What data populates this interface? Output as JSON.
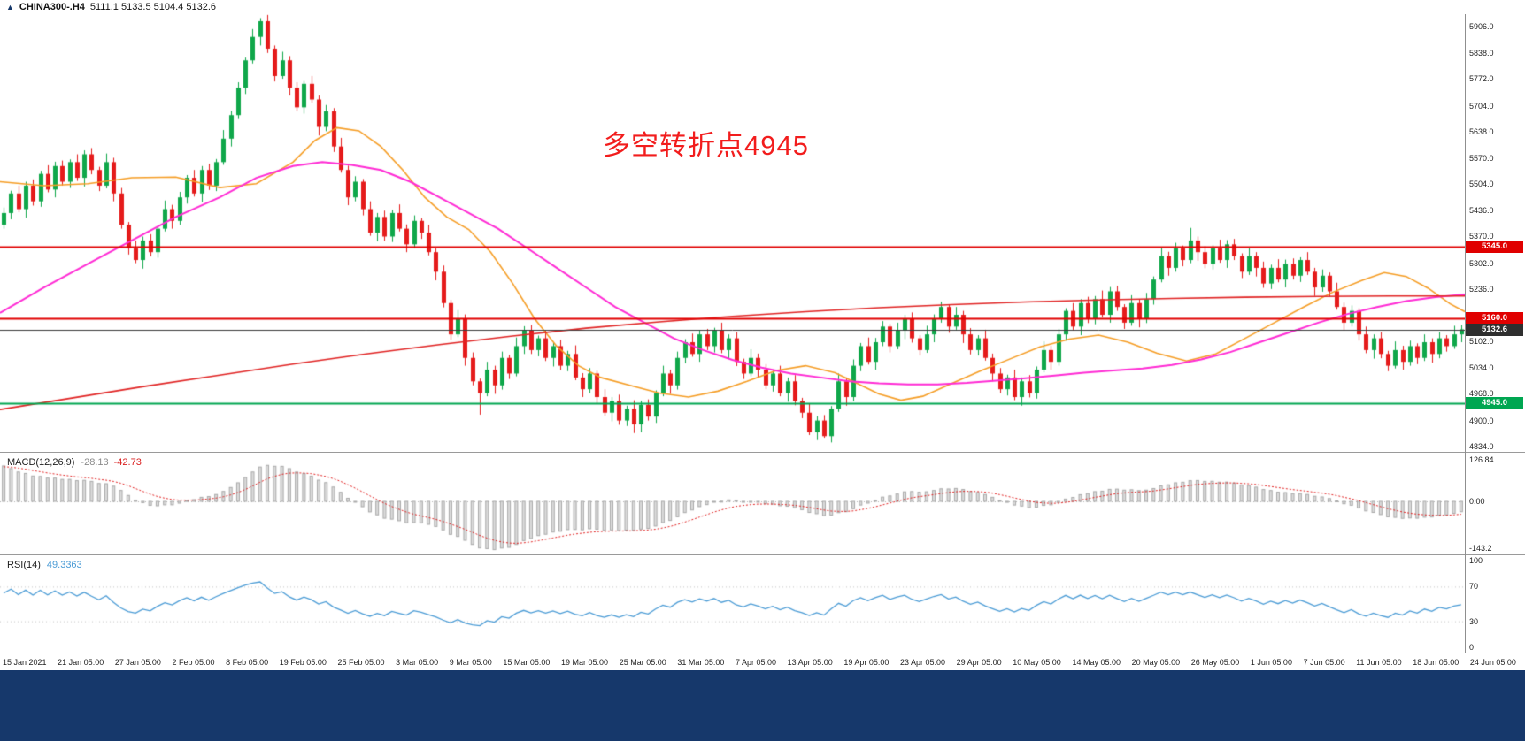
{
  "header": {
    "symbol_timeframe": "CHINA300-.H4",
    "ohlc_text": "5111.1 5133.5 5104.4 5132.6"
  },
  "icons": {
    "chart_symbol_icon": "▲"
  },
  "colors": {
    "bull": "#0fa74a",
    "bear": "#e51b1b",
    "bottom_bar": "#16386b",
    "histogram_fill": "#dcdcdc",
    "histogram_border": "#a9a9a9"
  },
  "chart_data": {
    "type": "candlestick",
    "symbol": "CHINA300-",
    "timeframe": "H4",
    "ohlc_display": {
      "open": 5111.1,
      "high": 5133.5,
      "low": 5104.4,
      "close": 5132.6
    },
    "annotation": {
      "text": "多空转折点4945",
      "color": "#f21d1d"
    },
    "price_axis": {
      "top_price": 5938,
      "bottom_price": 4820,
      "labels": [
        5906,
        5838,
        5772,
        5704,
        5638,
        5570,
        5504,
        5436,
        5370,
        5302,
        5236,
        5102,
        5034,
        4968,
        4900,
        4834
      ]
    },
    "hlines": [
      {
        "price": 5345.0,
        "color": "#e00000",
        "width": 2,
        "badge": "5345.0",
        "badge_bg": "#e00000"
      },
      {
        "price": 5160.0,
        "color": "#e00000",
        "width": 2,
        "badge": "5160.0",
        "badge_bg": "#e00000"
      },
      {
        "price": 5132.6,
        "color": "#3a3a3a",
        "width": 1,
        "badge": "5132.6",
        "badge_bg": "#2f2f2f"
      },
      {
        "price": 4945.0,
        "color": "#00a651",
        "width": 2,
        "badge": "4945.0",
        "badge_bg": "#00a651"
      }
    ],
    "candles": {
      "first_open": 5400,
      "closes": [
        5430,
        5480,
        5440,
        5500,
        5460,
        5530,
        5490,
        5550,
        5510,
        5560,
        5520,
        5580,
        5540,
        5500,
        5560,
        5480,
        5400,
        5340,
        5310,
        5360,
        5330,
        5390,
        5440,
        5410,
        5470,
        5520,
        5480,
        5540,
        5500,
        5560,
        5620,
        5680,
        5750,
        5820,
        5880,
        5920,
        5850,
        5780,
        5820,
        5750,
        5700,
        5760,
        5720,
        5650,
        5690,
        5600,
        5540,
        5470,
        5510,
        5440,
        5380,
        5420,
        5370,
        5430,
        5390,
        5350,
        5410,
        5380,
        5330,
        5280,
        5200,
        5120,
        5160,
        5060,
        5000,
        4970,
        5030,
        4990,
        5060,
        5020,
        5090,
        5130,
        5080,
        5110,
        5060,
        5090,
        5040,
        5070,
        5010,
        4980,
        5020,
        4960,
        4920,
        4950,
        4900,
        4930,
        4890,
        4940,
        4910,
        4970,
        5020,
        4990,
        5060,
        5100,
        5070,
        5120,
        5090,
        5130,
        5080,
        5110,
        5050,
        5020,
        5060,
        5030,
        4990,
        5020,
        4970,
        5000,
        4950,
        4920,
        4870,
        4900,
        4860,
        4930,
        5000,
        4960,
        5040,
        5090,
        5050,
        5100,
        5140,
        5090,
        5130,
        5160,
        5110,
        5080,
        5120,
        5160,
        5190,
        5140,
        5170,
        5120,
        5080,
        5110,
        5060,
        5020,
        4980,
        5010,
        4960,
        5000,
        4970,
        5030,
        5080,
        5050,
        5120,
        5180,
        5140,
        5200,
        5160,
        5210,
        5170,
        5230,
        5190,
        5150,
        5200,
        5160,
        5210,
        5260,
        5320,
        5290,
        5340,
        5310,
        5360,
        5330,
        5300,
        5340,
        5310,
        5350,
        5320,
        5280,
        5320,
        5290,
        5250,
        5290,
        5260,
        5300,
        5270,
        5310,
        5280,
        5240,
        5270,
        5230,
        5190,
        5150,
        5180,
        5120,
        5080,
        5110,
        5070,
        5040,
        5080,
        5050,
        5090,
        5060,
        5100,
        5070,
        5110,
        5090,
        5120,
        5133
      ],
      "wick_pattern": [
        14,
        7,
        20,
        10,
        16,
        8,
        22,
        11
      ],
      "overrides": {
        "35": {
          "high": 5928
        },
        "65": {
          "low": 4915
        },
        "86": {
          "low": 4868
        },
        "112": {
          "low": 4856
        },
        "162": {
          "high": 5392
        }
      }
    },
    "ma_lines": [
      {
        "name": "ma-fast-orange",
        "color": "#f59d25",
        "width": 1.6,
        "points": [
          [
            0,
            5510
          ],
          [
            0.03,
            5500
          ],
          [
            0.06,
            5505
          ],
          [
            0.09,
            5520
          ],
          [
            0.12,
            5522
          ],
          [
            0.15,
            5495
          ],
          [
            0.175,
            5505
          ],
          [
            0.2,
            5560
          ],
          [
            0.215,
            5615
          ],
          [
            0.23,
            5648
          ],
          [
            0.245,
            5640
          ],
          [
            0.26,
            5600
          ],
          [
            0.275,
            5540
          ],
          [
            0.29,
            5470
          ],
          [
            0.305,
            5420
          ],
          [
            0.32,
            5388
          ],
          [
            0.335,
            5330
          ],
          [
            0.35,
            5250
          ],
          [
            0.365,
            5160
          ],
          [
            0.38,
            5090
          ],
          [
            0.395,
            5040
          ],
          [
            0.41,
            5010
          ],
          [
            0.43,
            4990
          ],
          [
            0.45,
            4970
          ],
          [
            0.47,
            4960
          ],
          [
            0.49,
            4975
          ],
          [
            0.51,
            5000
          ],
          [
            0.53,
            5028
          ],
          [
            0.55,
            5040
          ],
          [
            0.57,
            5022
          ],
          [
            0.585,
            4995
          ],
          [
            0.6,
            4968
          ],
          [
            0.615,
            4952
          ],
          [
            0.63,
            4962
          ],
          [
            0.65,
            4995
          ],
          [
            0.67,
            5028
          ],
          [
            0.69,
            5058
          ],
          [
            0.71,
            5088
          ],
          [
            0.73,
            5108
          ],
          [
            0.75,
            5118
          ],
          [
            0.77,
            5100
          ],
          [
            0.79,
            5072
          ],
          [
            0.81,
            5052
          ],
          [
            0.83,
            5070
          ],
          [
            0.85,
            5110
          ],
          [
            0.87,
            5150
          ],
          [
            0.89,
            5190
          ],
          [
            0.91,
            5228
          ],
          [
            0.93,
            5258
          ],
          [
            0.945,
            5278
          ],
          [
            0.96,
            5268
          ],
          [
            0.975,
            5238
          ],
          [
            0.99,
            5198
          ],
          [
            1,
            5178
          ]
        ]
      },
      {
        "name": "ma-mid-magenta",
        "color": "#ff2ad4",
        "width": 2,
        "points": [
          [
            0,
            5175
          ],
          [
            0.03,
            5240
          ],
          [
            0.06,
            5300
          ],
          [
            0.09,
            5360
          ],
          [
            0.12,
            5420
          ],
          [
            0.15,
            5470
          ],
          [
            0.175,
            5520
          ],
          [
            0.2,
            5550
          ],
          [
            0.22,
            5560
          ],
          [
            0.24,
            5553
          ],
          [
            0.26,
            5540
          ],
          [
            0.28,
            5510
          ],
          [
            0.3,
            5470
          ],
          [
            0.32,
            5430
          ],
          [
            0.34,
            5390
          ],
          [
            0.36,
            5340
          ],
          [
            0.38,
            5290
          ],
          [
            0.4,
            5240
          ],
          [
            0.42,
            5190
          ],
          [
            0.44,
            5150
          ],
          [
            0.46,
            5110
          ],
          [
            0.48,
            5080
          ],
          [
            0.5,
            5055
          ],
          [
            0.52,
            5035
          ],
          [
            0.54,
            5020
          ],
          [
            0.56,
            5010
          ],
          [
            0.58,
            5000
          ],
          [
            0.6,
            4995
          ],
          [
            0.62,
            4992
          ],
          [
            0.64,
            4992
          ],
          [
            0.66,
            4996
          ],
          [
            0.68,
            5002
          ],
          [
            0.7,
            5008
          ],
          [
            0.72,
            5015
          ],
          [
            0.74,
            5022
          ],
          [
            0.76,
            5028
          ],
          [
            0.78,
            5033
          ],
          [
            0.8,
            5042
          ],
          [
            0.82,
            5056
          ],
          [
            0.84,
            5075
          ],
          [
            0.86,
            5100
          ],
          [
            0.88,
            5125
          ],
          [
            0.9,
            5150
          ],
          [
            0.92,
            5172
          ],
          [
            0.94,
            5190
          ],
          [
            0.96,
            5205
          ],
          [
            0.98,
            5215
          ],
          [
            1,
            5222
          ]
        ]
      },
      {
        "name": "ma-slow-red",
        "color": "#e02424",
        "width": 1.6,
        "points": [
          [
            0,
            4928
          ],
          [
            0.05,
            4958
          ],
          [
            0.1,
            4988
          ],
          [
            0.15,
            5016
          ],
          [
            0.2,
            5044
          ],
          [
            0.25,
            5070
          ],
          [
            0.3,
            5094
          ],
          [
            0.35,
            5116
          ],
          [
            0.4,
            5136
          ],
          [
            0.45,
            5152
          ],
          [
            0.5,
            5166
          ],
          [
            0.55,
            5178
          ],
          [
            0.6,
            5188
          ],
          [
            0.65,
            5196
          ],
          [
            0.7,
            5203
          ],
          [
            0.75,
            5208
          ],
          [
            0.8,
            5212
          ],
          [
            0.85,
            5215
          ],
          [
            0.9,
            5217
          ],
          [
            0.95,
            5218
          ],
          [
            1,
            5218
          ]
        ]
      }
    ],
    "macd": {
      "label": "MACD(12,26,9)",
      "value_main": "-28.13",
      "value_signal": "-42.73",
      "fast": 12,
      "slow": 26,
      "signal_period": 9,
      "axis": [
        {
          "label": "126.84",
          "value": 126.84
        },
        {
          "label": "0.00",
          "value": 0
        },
        {
          "label": "-143.2",
          "value": -143.2
        }
      ],
      "seeds": {
        "ema12": 5488,
        "ema26": 5366,
        "signal": 105
      }
    },
    "rsi": {
      "label": "RSI(14)",
      "value": "49.3363",
      "period": 14,
      "levels": [
        70,
        30
      ],
      "seed_avg_gain": 16,
      "seed_avg_loss": 11,
      "color": "#4a9bd5",
      "axis": [
        {
          "label": "100",
          "value": 100
        },
        {
          "label": "70",
          "value": 70
        },
        {
          "label": "30",
          "value": 30
        },
        {
          "label": "0",
          "value": 0
        }
      ]
    },
    "time_axis": [
      "15 Jan 2021",
      "21 Jan 05:00",
      "27 Jan 05:00",
      "2 Feb 05:00",
      "8 Feb 05:00",
      "19 Feb 05:00",
      "25 Feb 05:00",
      "3 Mar 05:00",
      "9 Mar 05:00",
      "15 Mar 05:00",
      "19 Mar 05:00",
      "25 Mar 05:00",
      "31 Mar 05:00",
      "7 Apr 05:00",
      "13 Apr 05:00",
      "19 Apr 05:00",
      "23 Apr 05:00",
      "29 Apr 05:00",
      "10 May 05:00",
      "14 May 05:00",
      "20 May 05:00",
      "26 May 05:00",
      "1 Jun 05:00",
      "7 Jun 05:00",
      "11 Jun 05:00",
      "18 Jun 05:00",
      "24 Jun 05:00"
    ]
  }
}
